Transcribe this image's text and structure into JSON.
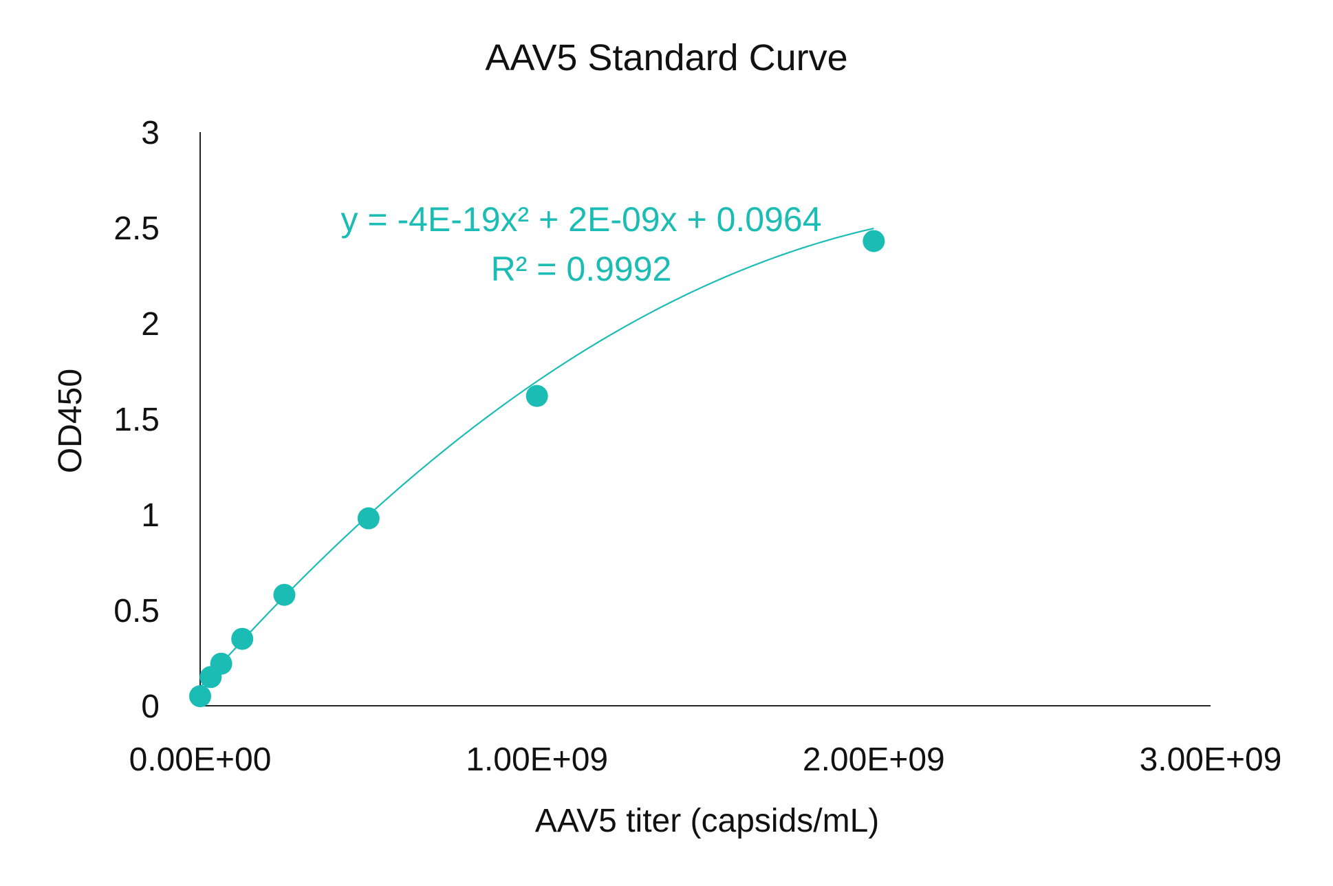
{
  "chart_data": {
    "type": "scatter",
    "title": "AAV5 Standard Curve",
    "xlabel": "AAV5 titer (capsids/mL)",
    "ylabel": "OD450",
    "xlim": [
      0,
      3000000000
    ],
    "ylim": [
      0,
      3
    ],
    "x_ticks": [
      0,
      1000000000,
      2000000000,
      3000000000
    ],
    "x_tick_labels": [
      "0.00E+00",
      "1.00E+09",
      "2.00E+09",
      "3.00E+09"
    ],
    "y_ticks": [
      0,
      0.5,
      1,
      1.5,
      2,
      2.5,
      3
    ],
    "y_tick_labels": [
      "0",
      "0.5",
      "1",
      "1.5",
      "2",
      "2.5",
      "3"
    ],
    "grid": false,
    "legend": "none",
    "marker_color": "#1ABCB4",
    "series": [
      {
        "x": [
          0,
          31250000,
          62500000,
          125000000,
          250000000,
          500000000,
          1000000000,
          2000000000
        ],
        "y": [
          0.05,
          0.15,
          0.22,
          0.35,
          0.58,
          0.98,
          1.62,
          2.43
        ]
      }
    ],
    "trendline": {
      "type": "polynomial",
      "order": 2,
      "coefficients": {
        "a": -4e-19,
        "b": 2e-09,
        "c": 0.0964
      },
      "x_range": [
        0,
        2000000000
      ],
      "equation_text": "y = -4E-19x² + 2E-09x + 0.0964",
      "r2_text": "R² = 0.9992",
      "color": "#1ABCB4"
    }
  }
}
